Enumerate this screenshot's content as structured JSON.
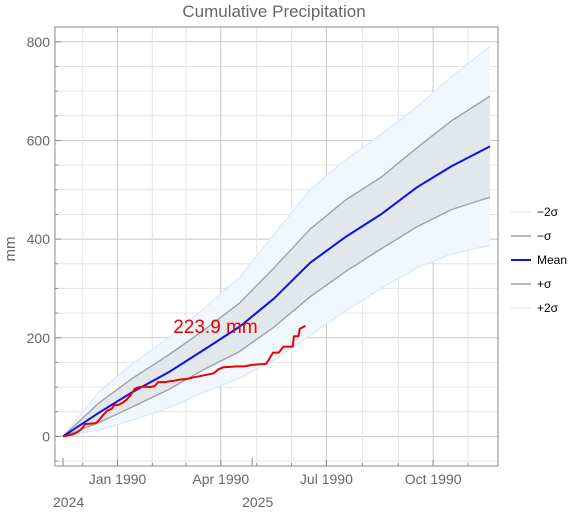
{
  "chart_data": {
    "type": "area",
    "title": "Cumulative Precipitation",
    "ylabel": "mm",
    "xlabel": "",
    "ylim": [
      -60,
      830
    ],
    "xlim": [
      0,
      368
    ],
    "x_axis": {
      "ticks": [
        {
          "x": 47,
          "label": "Jan 1990"
        },
        {
          "x": 136,
          "label": "Apr 1990"
        },
        {
          "x": 227,
          "label": "Jul 1990"
        },
        {
          "x": 319,
          "label": "Oct 1990"
        }
      ],
      "year_labels": [
        {
          "x": 0,
          "label": "2024"
        },
        {
          "x": 163,
          "label": "2025"
        }
      ]
    },
    "y_axis": {
      "ticks": [
        0,
        200,
        400,
        600,
        800
      ]
    },
    "grid": true,
    "legend_placement": "right",
    "legend": [
      {
        "label": "−2σ",
        "color": "#d6e9fb",
        "width": 1.2
      },
      {
        "label": "−σ",
        "color": "#9aa3ac",
        "width": 1.4
      },
      {
        "label": "Mean",
        "color": "#1010dd",
        "width": 2
      },
      {
        "label": "+σ",
        "color": "#9aa3ac",
        "width": 1.4
      },
      {
        "label": "+2σ",
        "color": "#d6e9fb",
        "width": 1.2
      }
    ],
    "series": [
      {
        "key": "minus2",
        "color": "#d6e9fb",
        "x": [
          0,
          31,
          60,
          91,
          121,
          152,
          182,
          213,
          244,
          274,
          305,
          335,
          368
        ],
        "values": [
          0,
          13,
          33,
          58,
          89,
          118,
          155,
          205,
          255,
          300,
          342,
          370,
          387
        ]
      },
      {
        "key": "minus1",
        "color": "#9aa3ac",
        "x": [
          0,
          31,
          60,
          91,
          121,
          152,
          182,
          213,
          244,
          274,
          305,
          335,
          368
        ],
        "values": [
          0,
          28,
          60,
          95,
          135,
          172,
          222,
          283,
          335,
          380,
          425,
          460,
          485
        ]
      },
      {
        "key": "mean",
        "color": "#1010dd",
        "x": [
          0,
          31,
          60,
          91,
          121,
          152,
          182,
          213,
          244,
          274,
          305,
          335,
          368
        ],
        "values": [
          0,
          48,
          90,
          130,
          175,
          222,
          280,
          352,
          405,
          450,
          505,
          548,
          588
        ]
      },
      {
        "key": "plus1",
        "color": "#9aa3ac",
        "x": [
          0,
          31,
          60,
          91,
          121,
          152,
          182,
          213,
          244,
          274,
          305,
          335,
          368
        ],
        "values": [
          0,
          68,
          118,
          165,
          215,
          270,
          342,
          420,
          480,
          525,
          585,
          640,
          690
        ]
      },
      {
        "key": "plus2",
        "color": "#d6e9fb",
        "x": [
          0,
          31,
          60,
          91,
          121,
          152,
          182,
          213,
          244,
          274,
          305,
          335,
          368
        ],
        "values": [
          0,
          90,
          148,
          200,
          258,
          322,
          410,
          500,
          562,
          612,
          668,
          730,
          790
        ]
      },
      {
        "key": "observed",
        "color": "#ee0000",
        "x": [
          0,
          4,
          8,
          12,
          16,
          19,
          24,
          28,
          30,
          34,
          38,
          42,
          44,
          48,
          52,
          55,
          58,
          62,
          66,
          70,
          75,
          79,
          82,
          88,
          92,
          96,
          100,
          104,
          108,
          113,
          118,
          124,
          130,
          134,
          138,
          144,
          150,
          156,
          163,
          168,
          175,
          178,
          181,
          186,
          190,
          198,
          199,
          203,
          204,
          209
        ],
        "values": [
          0,
          2,
          4,
          8,
          15,
          25,
          26,
          27,
          30,
          42,
          52,
          56,
          63,
          64,
          69,
          75,
          83,
          97,
          100,
          101,
          100,
          102,
          110,
          110,
          112,
          113,
          115,
          116,
          117,
          120,
          122,
          125,
          128,
          136,
          140,
          141,
          142,
          142,
          145,
          146,
          147,
          158,
          170,
          170,
          182,
          182,
          203,
          203,
          218,
          224
        ]
      }
    ],
    "annotations": [
      {
        "text": "223.9 mm",
        "x": 95,
        "y": 222,
        "color": "#ee0000"
      }
    ]
  }
}
